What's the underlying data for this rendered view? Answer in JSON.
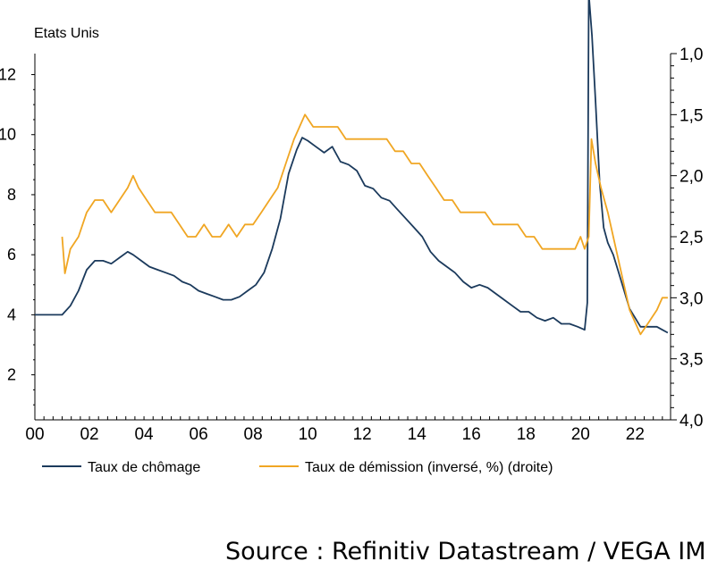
{
  "source": "Source : Refinitiv Datastream / VEGA IM",
  "chart_data": {
    "type": "line",
    "title": "Etats Unis",
    "colors": {
      "unemployment": "#1b3a5c",
      "quits": "#f0a623"
    },
    "x_axis": {
      "range": [
        2000,
        2023.3
      ],
      "ticks": [
        2000,
        2002,
        2004,
        2006,
        2008,
        2010,
        2012,
        2014,
        2016,
        2018,
        2020,
        2022
      ],
      "tick_labels": [
        "00",
        "02",
        "04",
        "06",
        "08",
        "10",
        "12",
        "14",
        "16",
        "18",
        "20",
        "22"
      ]
    },
    "y_left": {
      "range": [
        0.5,
        12.7
      ],
      "ticks": [
        2,
        4,
        6,
        8,
        10,
        12
      ],
      "tick_labels": [
        "2",
        "4",
        "6",
        "8",
        "10",
        "12"
      ]
    },
    "y_right": {
      "inverted": true,
      "range": [
        1.0,
        4.0
      ],
      "ticks": [
        1.0,
        1.5,
        2.0,
        2.5,
        3.0,
        3.5,
        4.0
      ],
      "tick_labels": [
        "1,0",
        "1,5",
        "2,0",
        "2,5",
        "3,0",
        "3,5",
        "4,0"
      ]
    },
    "legend": {
      "placement": "bottom",
      "entries": [
        "Taux de chômage",
        "Taux de démission (inversé, %) (droite)"
      ]
    },
    "series": [
      {
        "name": "Taux de chômage",
        "axis": "left",
        "x": [
          2000.0,
          2000.5,
          2001.0,
          2001.3,
          2001.6,
          2001.9,
          2002.2,
          2002.5,
          2002.8,
          2003.1,
          2003.4,
          2003.6,
          2003.9,
          2004.2,
          2004.5,
          2004.8,
          2005.1,
          2005.4,
          2005.7,
          2006.0,
          2006.3,
          2006.6,
          2006.9,
          2007.2,
          2007.5,
          2007.8,
          2008.1,
          2008.4,
          2008.7,
          2009.0,
          2009.3,
          2009.6,
          2009.8,
          2010.0,
          2010.3,
          2010.6,
          2010.9,
          2011.2,
          2011.5,
          2011.8,
          2012.1,
          2012.4,
          2012.7,
          2013.0,
          2013.3,
          2013.6,
          2013.9,
          2014.2,
          2014.5,
          2014.8,
          2015.1,
          2015.4,
          2015.7,
          2016.0,
          2016.3,
          2016.6,
          2016.9,
          2017.2,
          2017.5,
          2017.8,
          2018.1,
          2018.4,
          2018.7,
          2019.0,
          2019.3,
          2019.6,
          2019.9,
          2020.15,
          2020.25,
          2020.3,
          2020.42,
          2020.55,
          2020.7,
          2020.85,
          2021.0,
          2021.2,
          2021.4,
          2021.6,
          2021.8,
          2022.0,
          2022.2,
          2022.5,
          2022.8,
          2023.0,
          2023.2
        ],
        "y": [
          4.0,
          4.0,
          4.0,
          4.3,
          4.8,
          5.5,
          5.8,
          5.8,
          5.7,
          5.9,
          6.1,
          6.0,
          5.8,
          5.6,
          5.5,
          5.4,
          5.3,
          5.1,
          5.0,
          4.8,
          4.7,
          4.6,
          4.5,
          4.5,
          4.6,
          4.8,
          5.0,
          5.4,
          6.2,
          7.2,
          8.7,
          9.5,
          9.9,
          9.8,
          9.6,
          9.4,
          9.6,
          9.1,
          9.0,
          8.8,
          8.3,
          8.2,
          7.9,
          7.8,
          7.5,
          7.2,
          6.9,
          6.6,
          6.1,
          5.8,
          5.6,
          5.4,
          5.1,
          4.9,
          5.0,
          4.9,
          4.7,
          4.5,
          4.3,
          4.1,
          4.1,
          3.9,
          3.8,
          3.9,
          3.7,
          3.7,
          3.6,
          3.5,
          4.4,
          14.7,
          13.3,
          11.1,
          8.4,
          6.9,
          6.4,
          6.0,
          5.4,
          4.8,
          4.2,
          3.9,
          3.6,
          3.6,
          3.6,
          3.5,
          3.4
        ]
      },
      {
        "name": "Taux de démission (inversé, %) (droite)",
        "axis": "right",
        "x": [
          2001.0,
          2001.1,
          2001.3,
          2001.6,
          2001.9,
          2002.2,
          2002.5,
          2002.8,
          2003.1,
          2003.4,
          2003.6,
          2003.8,
          2004.1,
          2004.4,
          2004.7,
          2005.0,
          2005.3,
          2005.6,
          2005.9,
          2006.2,
          2006.5,
          2006.8,
          2007.1,
          2007.4,
          2007.7,
          2008.0,
          2008.3,
          2008.6,
          2008.9,
          2009.2,
          2009.5,
          2009.7,
          2009.9,
          2010.2,
          2010.5,
          2010.8,
          2011.1,
          2011.4,
          2011.7,
          2012.0,
          2012.3,
          2012.6,
          2012.9,
          2013.2,
          2013.5,
          2013.8,
          2014.1,
          2014.4,
          2014.7,
          2015.0,
          2015.3,
          2015.6,
          2015.9,
          2016.2,
          2016.5,
          2016.8,
          2017.1,
          2017.4,
          2017.7,
          2018.0,
          2018.3,
          2018.6,
          2018.9,
          2019.2,
          2019.5,
          2019.8,
          2020.0,
          2020.15,
          2020.3,
          2020.4,
          2020.55,
          2020.75,
          2021.0,
          2021.2,
          2021.4,
          2021.6,
          2021.8,
          2022.0,
          2022.2,
          2022.5,
          2022.8,
          2023.0,
          2023.2
        ],
        "y": [
          2.5,
          2.8,
          2.6,
          2.5,
          2.3,
          2.2,
          2.2,
          2.3,
          2.2,
          2.1,
          2.0,
          2.1,
          2.2,
          2.3,
          2.3,
          2.3,
          2.4,
          2.5,
          2.5,
          2.4,
          2.5,
          2.5,
          2.4,
          2.5,
          2.4,
          2.4,
          2.3,
          2.2,
          2.1,
          1.9,
          1.7,
          1.6,
          1.5,
          1.6,
          1.6,
          1.6,
          1.6,
          1.7,
          1.7,
          1.7,
          1.7,
          1.7,
          1.7,
          1.8,
          1.8,
          1.9,
          1.9,
          2.0,
          2.1,
          2.2,
          2.2,
          2.3,
          2.3,
          2.3,
          2.3,
          2.4,
          2.4,
          2.4,
          2.4,
          2.5,
          2.5,
          2.6,
          2.6,
          2.6,
          2.6,
          2.6,
          2.5,
          2.6,
          2.5,
          1.7,
          1.9,
          2.1,
          2.3,
          2.5,
          2.7,
          2.9,
          3.1,
          3.2,
          3.3,
          3.2,
          3.1,
          3.0,
          3.0
        ]
      }
    ]
  }
}
